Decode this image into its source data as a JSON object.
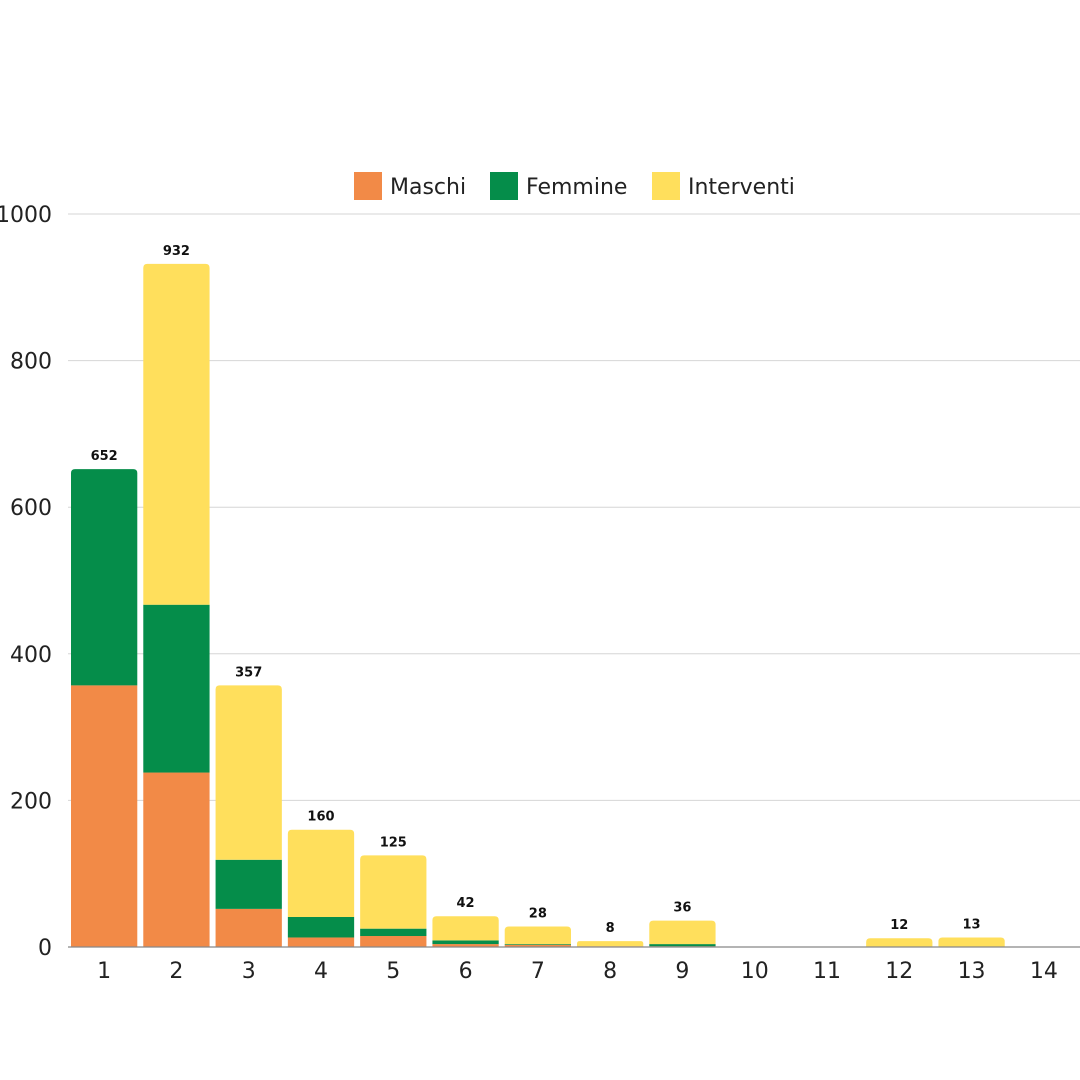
{
  "chart_data": {
    "type": "bar",
    "stacked": true,
    "categories": [
      "1",
      "2",
      "3",
      "4",
      "5",
      "6",
      "7",
      "8",
      "9",
      "10",
      "11",
      "12",
      "13",
      "14"
    ],
    "series": [
      {
        "name": "Maschi",
        "color": "#f28a47",
        "values": [
          357,
          238,
          52,
          13,
          15,
          4,
          3,
          1,
          1,
          0,
          0,
          0,
          0,
          0
        ]
      },
      {
        "name": "Femmine",
        "color": "#058d4a",
        "values": [
          295,
          229,
          67,
          28,
          10,
          5,
          1,
          0,
          3,
          0,
          0,
          0,
          0,
          0
        ]
      },
      {
        "name": "Interventi",
        "color": "#ffdf5c",
        "values": [
          0,
          465,
          238,
          119,
          100,
          33,
          24,
          7,
          32,
          0,
          0,
          12,
          13,
          0
        ]
      }
    ],
    "totals": [
      652,
      932,
      357,
      160,
      125,
      42,
      28,
      8,
      36,
      null,
      null,
      12,
      13,
      null
    ],
    "total_labels": [
      "652",
      "932",
      "357",
      "160",
      "125",
      "42",
      "28",
      "8",
      "36",
      "",
      "",
      "12",
      "13",
      ""
    ],
    "yticks": [
      "0",
      "200",
      "400",
      "600",
      "800",
      "1000"
    ],
    "ylim": [
      0,
      1000
    ],
    "grid": true,
    "legend_position": "top"
  }
}
